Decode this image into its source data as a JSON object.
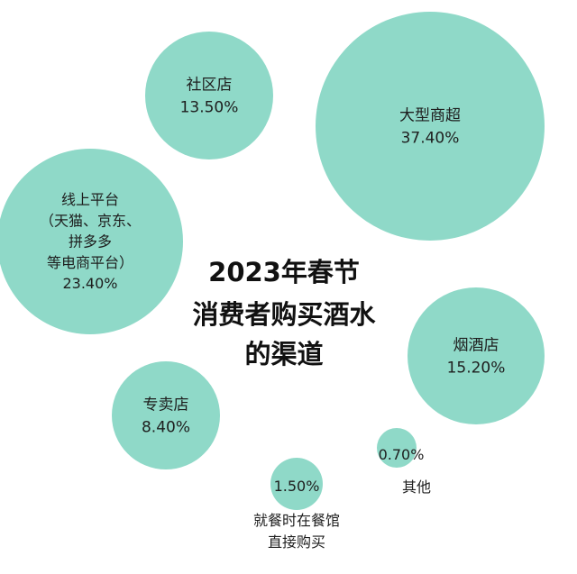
{
  "chart_data": {
    "type": "bubble",
    "title_lines": [
      "2023年春节",
      "消费者购买酒水",
      "的渠道"
    ],
    "unit": "%",
    "bubble_color": "#8fd9c8",
    "items": [
      {
        "name_lines": [
          "大型商超"
        ],
        "value_text": "37.40%",
        "value": 37.4
      },
      {
        "name_lines": [
          "线上平台",
          "（天猫、京东、",
          "拼多多",
          "等电商平台）"
        ],
        "value_text": "23.40%",
        "value": 23.4
      },
      {
        "name_lines": [
          "烟酒店"
        ],
        "value_text": "15.20%",
        "value": 15.2
      },
      {
        "name_lines": [
          "社区店"
        ],
        "value_text": "13.50%",
        "value": 13.5
      },
      {
        "name_lines": [
          "专卖店"
        ],
        "value_text": "8.40%",
        "value": 8.4
      },
      {
        "name_lines": [
          "就餐时在餐馆",
          "直接购买"
        ],
        "value_text": "1.50%",
        "value": 1.5
      },
      {
        "name_lines": [
          "其他"
        ],
        "value_text": "0.70%",
        "value": 0.7
      }
    ]
  }
}
